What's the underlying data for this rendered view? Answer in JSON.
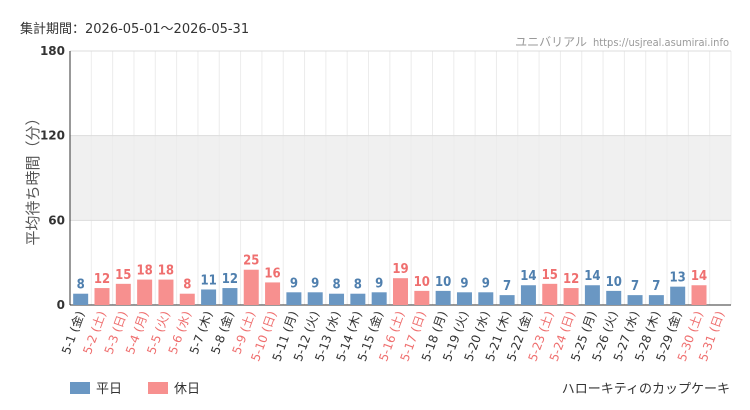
{
  "header": {
    "period_label": "集計期間：2026-05-01〜2026-05-31",
    "site_name": "ユニバリアル",
    "site_url": "https://usjreal.asumirai.info"
  },
  "footer": {
    "attraction_name": "ハローキティのカップケーキ"
  },
  "colors": {
    "weekday": "#6a97c3",
    "holiday": "#f7908f",
    "weekday_label": "#4f7fae",
    "holiday_label": "#ef6f6f"
  },
  "chart_data": {
    "type": "bar",
    "ylabel": "平均待ち時間（分）",
    "ylim": [
      0,
      180
    ],
    "yticks": [
      0,
      60,
      120,
      180
    ],
    "shaded_band": [
      60,
      120
    ],
    "legend_position": "bottom-left",
    "legend": [
      {
        "name": "平日",
        "key": "weekday"
      },
      {
        "name": "休日",
        "key": "holiday"
      }
    ],
    "categories": [
      "5-1 (金)",
      "5-2 (土)",
      "5-3 (日)",
      "5-4 (月)",
      "5-5 (火)",
      "5-6 (水)",
      "5-7 (木)",
      "5-8 (金)",
      "5-9 (土)",
      "5-10 (日)",
      "5-11 (月)",
      "5-12 (火)",
      "5-13 (水)",
      "5-14 (木)",
      "5-15 (金)",
      "5-16 (土)",
      "5-17 (日)",
      "5-18 (月)",
      "5-19 (火)",
      "5-20 (水)",
      "5-21 (木)",
      "5-22 (金)",
      "5-23 (土)",
      "5-24 (日)",
      "5-25 (月)",
      "5-26 (火)",
      "5-27 (水)",
      "5-28 (木)",
      "5-29 (金)",
      "5-30 (土)",
      "5-31 (日)"
    ],
    "values": [
      8,
      12,
      15,
      18,
      18,
      8,
      11,
      12,
      25,
      16,
      9,
      9,
      8,
      8,
      9,
      19,
      10,
      10,
      9,
      9,
      7,
      14,
      15,
      12,
      14,
      10,
      7,
      7,
      13,
      14,
      null
    ],
    "day_type": [
      "weekday",
      "holiday",
      "holiday",
      "holiday",
      "holiday",
      "holiday",
      "weekday",
      "weekday",
      "holiday",
      "holiday",
      "weekday",
      "weekday",
      "weekday",
      "weekday",
      "weekday",
      "holiday",
      "holiday",
      "weekday",
      "weekday",
      "weekday",
      "weekday",
      "weekday",
      "holiday",
      "holiday",
      "weekday",
      "weekday",
      "weekday",
      "weekday",
      "weekday",
      "holiday",
      "holiday"
    ]
  }
}
